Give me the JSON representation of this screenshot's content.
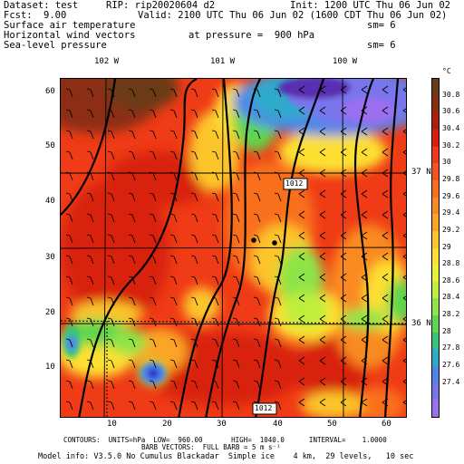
{
  "header": {
    "dataset_label": "Dataset: test",
    "rip_label": "RIP: rip20020604 d2",
    "init_label": "Init: 1200 UTC Thu 06 Jun 02",
    "fcst_label": "Fcst:",
    "fcst_value": "9.00",
    "valid_label": "Valid: 2100 UTC Thu 06 Jun 02 (1600 CDT Thu 06 Jun 02)",
    "field1": "Surface air temperature",
    "field1_sm": "sm= 6",
    "field2": "Horizontal wind vectors",
    "field2_pressure": "at pressure =  900 hPa",
    "field3": "Sea-level pressure",
    "field3_sm": "sm= 6"
  },
  "map": {
    "longitude_labels": [
      "102 W",
      "101 W",
      "100 W"
    ],
    "latitude_labels": [
      "37 N",
      "36 N"
    ],
    "x_ticks": [
      "10",
      "20",
      "30",
      "40",
      "50",
      "60"
    ],
    "y_ticks": [
      "60",
      "50",
      "40",
      "30",
      "20",
      "10"
    ],
    "contour_labels": [
      "1012",
      "1012"
    ],
    "x_range": [
      1,
      64
    ],
    "y_range": [
      1,
      64
    ]
  },
  "colorbar": {
    "unit": "°C",
    "labels": [
      "30.8",
      "30.6",
      "30.4",
      "30.2",
      "30",
      "29.8",
      "29.6",
      "29.4",
      "29.2",
      "29",
      "28.8",
      "28.6",
      "28.4",
      "28.2",
      "28",
      "27.8",
      "27.6",
      "27.4"
    ],
    "colors": [
      "#6b3a17",
      "#8c2d12",
      "#b01e0e",
      "#d8200e",
      "#ee3a16",
      "#f5531c",
      "#f86f1e",
      "#f98a22",
      "#fba526",
      "#fcc52c",
      "#fde033",
      "#e9f038",
      "#bfee3e",
      "#8fe446",
      "#5ed64e",
      "#38c47a",
      "#2eaacb",
      "#4d86e8",
      "#7a74ec",
      "#9a6ff0"
    ]
  },
  "footer": {
    "line1": "CONTOURS:  UNITS=hPa  LOW=  960.00       HIGH=  1040.0      INTERVAL=    1.0000",
    "line2": "BARB VECTORS:  FULL BARB = 5 m s⁻¹",
    "line3": "Model info: V3.5.0 No Cumulus Blackadar  Simple ice    4 km,  29 levels,   10 sec"
  }
}
